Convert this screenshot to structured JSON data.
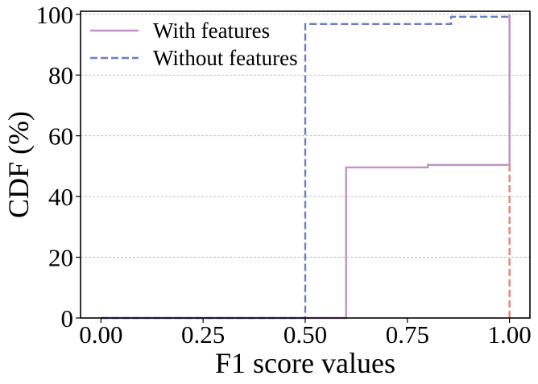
{
  "chart_data": {
    "type": "line",
    "xlabel": "F1 score values",
    "ylabel": "CDF (%)",
    "xlim": [
      -0.05,
      1.05
    ],
    "ylim": [
      0,
      101
    ],
    "xticks": [
      0.0,
      0.25,
      0.5,
      0.75,
      1.0
    ],
    "xtick_labels": [
      "0.00",
      "0.25",
      "0.50",
      "0.75",
      "1.00"
    ],
    "yticks": [
      0,
      20,
      40,
      60,
      80,
      100
    ],
    "ytick_labels": [
      "0",
      "20",
      "40",
      "60",
      "80",
      "100"
    ],
    "grid": "horizontal-dashed",
    "legend_position": "top-left",
    "series": [
      {
        "name": "With features",
        "color": "#c191c9",
        "dash": "solid",
        "x": [
          0.0,
          0.6,
          0.6,
          0.8,
          0.8,
          1.0,
          1.0
        ],
        "y": [
          0,
          0,
          49.6,
          49.6,
          50.4,
          50.4,
          100
        ]
      },
      {
        "name": "Without features",
        "color": "#6b7fc4",
        "dash": "dashed",
        "x": [
          0.0,
          0.5,
          0.5,
          0.857,
          0.857,
          1.0
        ],
        "y": [
          0,
          0,
          96.8,
          96.8,
          99.2,
          99.2
        ]
      }
    ],
    "annotations": [
      {
        "type": "vline",
        "x": 1.0,
        "y_from": 0,
        "y_to": 99.2,
        "color": "#f08070",
        "dash": "dashed"
      },
      {
        "type": "vline",
        "x": 1.0,
        "y_from": 99.2,
        "y_to": 100,
        "color": "#f08070",
        "dash": "solid"
      }
    ]
  }
}
